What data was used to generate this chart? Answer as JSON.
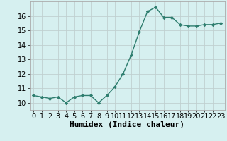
{
  "x": [
    0,
    1,
    2,
    3,
    4,
    5,
    6,
    7,
    8,
    9,
    10,
    11,
    12,
    13,
    14,
    15,
    16,
    17,
    18,
    19,
    20,
    21,
    22,
    23
  ],
  "y": [
    10.5,
    10.4,
    10.3,
    10.4,
    10.0,
    10.4,
    10.5,
    10.5,
    10.0,
    10.5,
    11.1,
    12.0,
    13.3,
    14.9,
    16.3,
    16.6,
    15.9,
    15.9,
    15.4,
    15.3,
    15.3,
    15.4,
    15.4,
    15.5
  ],
  "line_color": "#2d7d6e",
  "marker": "D",
  "marker_size": 2.2,
  "bg_color": "#d6f0f0",
  "grid_color": "#c0d0d0",
  "xlabel": "Humidex (Indice chaleur)",
  "xlim": [
    -0.5,
    23.5
  ],
  "ylim": [
    9.5,
    17.0
  ],
  "yticks": [
    10,
    11,
    12,
    13,
    14,
    15,
    16
  ],
  "xticks": [
    0,
    1,
    2,
    3,
    4,
    5,
    6,
    7,
    8,
    9,
    10,
    11,
    12,
    13,
    14,
    15,
    16,
    17,
    18,
    19,
    20,
    21,
    22,
    23
  ],
  "tick_fontsize": 7,
  "xlabel_fontsize": 8,
  "line_width": 1.0
}
